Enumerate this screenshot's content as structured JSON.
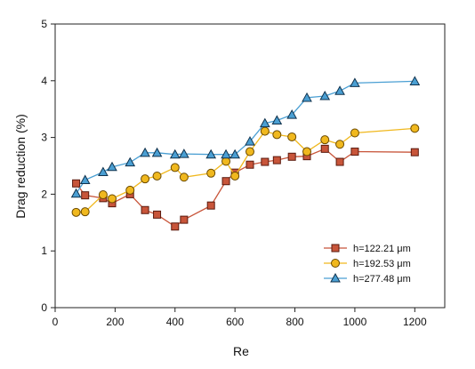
{
  "chart_data": {
    "type": "line",
    "xlabel": "Re",
    "ylabel": "Drag reduction (%)",
    "xlim": [
      0,
      1300
    ],
    "ylim": [
      0,
      5
    ],
    "xticks": [
      0,
      200,
      400,
      600,
      800,
      1000,
      1200
    ],
    "yticks": [
      0,
      1,
      2,
      3,
      4,
      5
    ],
    "grid": false,
    "legend_position": "bottom-right",
    "series": [
      {
        "name": "h=122.21 μm",
        "marker": "square",
        "color": "#c8553a",
        "x": [
          70,
          100,
          160,
          190,
          250,
          300,
          340,
          400,
          430,
          520,
          570,
          600,
          650,
          700,
          740,
          790,
          840,
          900,
          950,
          1000,
          1200
        ],
        "y": [
          2.19,
          1.98,
          1.93,
          1.84,
          2.0,
          1.72,
          1.64,
          1.43,
          1.55,
          1.8,
          2.23,
          2.38,
          2.52,
          2.57,
          2.6,
          2.66,
          2.67,
          2.8,
          2.57,
          2.75,
          2.74
        ]
      },
      {
        "name": "h=192.53 μm",
        "marker": "circle",
        "color": "#f0b81e",
        "x": [
          70,
          100,
          160,
          190,
          250,
          300,
          340,
          400,
          430,
          520,
          570,
          600,
          650,
          700,
          740,
          790,
          840,
          900,
          950,
          1000,
          1200
        ],
        "y": [
          1.68,
          1.69,
          1.99,
          1.92,
          2.07,
          2.27,
          2.32,
          2.47,
          2.3,
          2.37,
          2.58,
          2.32,
          2.75,
          3.11,
          3.05,
          3.01,
          2.75,
          2.96,
          2.88,
          3.08,
          3.16
        ]
      },
      {
        "name": "h=277.48 μm",
        "marker": "triangle",
        "color": "#4a9fd3",
        "x": [
          70,
          100,
          160,
          190,
          250,
          300,
          340,
          400,
          430,
          520,
          570,
          600,
          650,
          700,
          740,
          790,
          840,
          900,
          950,
          1000,
          1200
        ],
        "y": [
          2.01,
          2.25,
          2.39,
          2.48,
          2.56,
          2.73,
          2.73,
          2.7,
          2.71,
          2.7,
          2.7,
          2.7,
          2.93,
          3.25,
          3.3,
          3.4,
          3.7,
          3.73,
          3.82,
          3.96,
          3.99
        ]
      }
    ]
  }
}
